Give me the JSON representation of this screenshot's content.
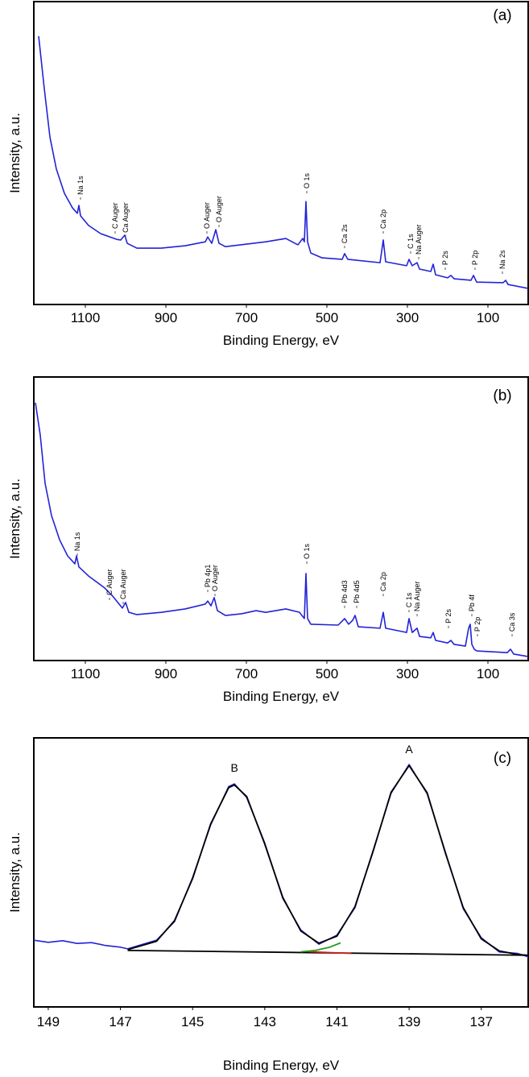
{
  "chart_data": [
    {
      "type": "line",
      "title": "(a)",
      "x_label": "Binding Energy, eV",
      "y_label": "Intensity, a.u.",
      "xlim": [
        1228,
        0
      ],
      "ylim": [
        0,
        100
      ],
      "xticks": [
        1100,
        900,
        700,
        500,
        300,
        100
      ],
      "annotation_rotation": 90,
      "series": [
        {
          "color": "#2323d6",
          "x": [
            1216,
            1202,
            1188,
            1172,
            1152,
            1132,
            1120,
            1116,
            1112,
            1092,
            1062,
            1022,
            1012,
            1002,
            996,
            972,
            912,
            852,
            802,
            796,
            786,
            776,
            768,
            752,
            652,
            602,
            572,
            560,
            556,
            552,
            548,
            540,
            512,
            462,
            456,
            448,
            368,
            360,
            354,
            302,
            296,
            288,
            276,
            270,
            242,
            236,
            230,
            200,
            192,
            184,
            142,
            136,
            128,
            62,
            56,
            50,
            0
          ],
          "values": [
            88.6,
            71.3,
            55.3,
            44.7,
            36.7,
            31.9,
            30.1,
            32.7,
            29.3,
            26.1,
            23.4,
            21.5,
            21.3,
            22.9,
            20.2,
            18.6,
            18.6,
            19.4,
            20.7,
            22.3,
            20.2,
            24.7,
            20.2,
            19.1,
            20.7,
            21.8,
            19.7,
            21.8,
            20.7,
            34.0,
            20.7,
            17.0,
            15.4,
            14.9,
            16.8,
            14.9,
            13.8,
            21.3,
            14.1,
            12.8,
            14.9,
            12.8,
            13.8,
            11.7,
            10.9,
            13.3,
            9.8,
            8.8,
            9.6,
            8.5,
            8.0,
            9.6,
            7.4,
            7.2,
            8.0,
            6.6,
            5.3
          ]
        }
      ],
      "annotations": [
        {
          "text": "Na 1s",
          "x": 1112,
          "y": 34.6
        },
        {
          "text": "C Auger",
          "x": 1026,
          "y": 23.4
        },
        {
          "text": "Ca Auger",
          "x": 1000,
          "y": 22.1
        },
        {
          "text": "O Auger",
          "x": 798,
          "y": 23.4
        },
        {
          "text": "O Auger",
          "x": 768,
          "y": 25.5
        },
        {
          "text": "O 1s",
          "x": 550,
          "y": 36.7
        },
        {
          "text": "Ca 2s",
          "x": 456,
          "y": 18.6
        },
        {
          "text": "Ca 2p",
          "x": 360,
          "y": 23.4
        },
        {
          "text": "C 1s",
          "x": 292,
          "y": 16.8
        },
        {
          "text": "Na Auger",
          "x": 272,
          "y": 14.9
        },
        {
          "text": "P 2s",
          "x": 206,
          "y": 11.4
        },
        {
          "text": "P 2p",
          "x": 132,
          "y": 11.4
        },
        {
          "text": "Na 2s",
          "x": 64,
          "y": 10.1
        }
      ]
    },
    {
      "type": "line",
      "title": "(b)",
      "x_label": "Binding Energy, eV",
      "y_label": "Intensity, a.u.",
      "xlim": [
        1228,
        0
      ],
      "ylim": [
        0,
        100
      ],
      "xticks": [
        1100,
        900,
        700,
        500,
        300,
        100
      ],
      "annotation_rotation": 90,
      "series": [
        {
          "color": "#2323d6",
          "x": [
            1224,
            1212,
            1200,
            1184,
            1164,
            1144,
            1126,
            1122,
            1116,
            1092,
            1052,
            1032,
            1016,
            1008,
            1000,
            992,
            972,
            912,
            852,
            802,
            796,
            788,
            780,
            772,
            752,
            712,
            676,
            652,
            602,
            568,
            556,
            552,
            548,
            540,
            472,
            456,
            446,
            436,
            430,
            422,
            368,
            360,
            354,
            302,
            296,
            288,
            276,
            270,
            242,
            236,
            230,
            200,
            192,
            184,
            156,
            148,
            144,
            140,
            134,
            128,
            52,
            44,
            36,
            0
          ],
          "values": [
            90.9,
            79.5,
            62.5,
            51.1,
            42.6,
            36.9,
            34.1,
            36.9,
            33.0,
            29.8,
            25.6,
            22.7,
            19.9,
            18.5,
            20.5,
            17.0,
            16.2,
            17.0,
            18.2,
            19.9,
            21.0,
            19.3,
            22.2,
            17.6,
            15.9,
            16.5,
            17.6,
            17.0,
            18.2,
            17.0,
            14.8,
            30.7,
            14.8,
            12.8,
            12.5,
            14.8,
            12.8,
            14.2,
            15.9,
            11.9,
            11.4,
            17.0,
            11.4,
            9.9,
            14.8,
            9.9,
            11.4,
            8.5,
            8.0,
            9.9,
            7.1,
            6.2,
            7.1,
            5.7,
            5.1,
            11.4,
            12.8,
            5.7,
            4.0,
            3.4,
            2.8,
            4.0,
            2.3,
            1.4
          ]
        }
      ],
      "annotations": [
        {
          "text": "Na 1s",
          "x": 1120,
          "y": 36.9
        },
        {
          "text": "C Auger",
          "x": 1040,
          "y": 21.3
        },
        {
          "text": "Ca Auger",
          "x": 1006,
          "y": 19.9
        },
        {
          "text": "Pb 4p1",
          "x": 796,
          "y": 24.1
        },
        {
          "text": "O Auger",
          "x": 778,
          "y": 22.7
        },
        {
          "text": "O 1s",
          "x": 550,
          "y": 34.1
        },
        {
          "text": "Pb 4d3",
          "x": 456,
          "y": 18.5
        },
        {
          "text": "Pb 4d5",
          "x": 426,
          "y": 18.5
        },
        {
          "text": "Ca 2p",
          "x": 360,
          "y": 22.7
        },
        {
          "text": "C 1s",
          "x": 296,
          "y": 17.0
        },
        {
          "text": "Na Auger",
          "x": 276,
          "y": 15.6
        },
        {
          "text": "P 2s",
          "x": 198,
          "y": 11.4
        },
        {
          "text": "Pb 4f",
          "x": 140,
          "y": 15.6
        },
        {
          "text": "P 2p",
          "x": 126,
          "y": 8.5
        },
        {
          "text": "Ca 3s",
          "x": 40,
          "y": 8.5
        }
      ]
    },
    {
      "type": "line",
      "title": "(c)",
      "x_label": "Binding Energy, eV",
      "y_label": "Intensity, a.u.",
      "xlim": [
        149.4,
        135.7
      ],
      "ylim": [
        0,
        100
      ],
      "xticks": [
        149,
        147,
        145,
        143,
        141,
        139,
        137
      ],
      "annotation_rotation": 0,
      "series": [
        {
          "color": "#2323d6",
          "x": [
            149.4,
            149.0,
            148.6,
            148.2,
            147.8,
            147.4,
            147.0,
            146.8,
            146.0,
            145.5,
            145.0,
            144.5,
            144.0,
            143.84,
            143.5,
            143.0,
            142.5,
            142.0,
            141.5,
            141.0,
            140.5,
            140.0,
            139.5,
            139.0,
            138.5,
            138.0,
            137.5,
            137.0,
            136.5,
            136.0,
            135.7
          ],
          "values": [
            24.8,
            24.0,
            24.6,
            23.6,
            23.9,
            22.8,
            22.2,
            21.6,
            24.8,
            31.7,
            48.1,
            67.6,
            81.9,
            82.9,
            77.8,
            60.9,
            40.3,
            28.6,
            23.3,
            26.7,
            36.9,
            58.1,
            79.4,
            90.1,
            79.2,
            57.8,
            36.5,
            25.7,
            20.4,
            19.9,
            18.6
          ]
        },
        {
          "color": "#000000",
          "x": [
            146.8,
            146.0,
            145.5,
            145.0,
            144.5,
            144.0,
            143.84,
            143.5,
            143.0,
            142.5,
            142.0,
            141.5,
            141.0,
            140.5,
            140.0,
            139.5,
            139.0,
            138.5,
            138.0,
            137.5,
            137.0,
            136.5,
            136.0,
            135.7
          ],
          "values": [
            21.3,
            24.4,
            32.1,
            47.7,
            68.0,
            81.5,
            82.5,
            78.2,
            60.5,
            40.7,
            28.2,
            23.7,
            26.3,
            37.3,
            57.7,
            79.8,
            89.7,
            79.6,
            57.4,
            36.9,
            25.3,
            20.8,
            19.5,
            19.2
          ]
        },
        {
          "color": "#000000",
          "x": [
            146.8,
            135.7
          ],
          "values": [
            21.0,
            19.2
          ]
        },
        {
          "color": "#d62020",
          "x": [
            141.8,
            141.4,
            141.0,
            140.6
          ],
          "values": [
            20.6,
            20.3,
            20.1,
            19.9
          ]
        },
        {
          "color": "#1f9e1f",
          "x": [
            142.0,
            141.6,
            141.2,
            140.9
          ],
          "values": [
            20.5,
            21.0,
            22.2,
            23.8
          ]
        }
      ],
      "annotations": [
        {
          "text": "B",
          "x": 143.84,
          "y": 87.4
        },
        {
          "text": "A",
          "x": 139.0,
          "y": 94.3
        }
      ]
    }
  ]
}
